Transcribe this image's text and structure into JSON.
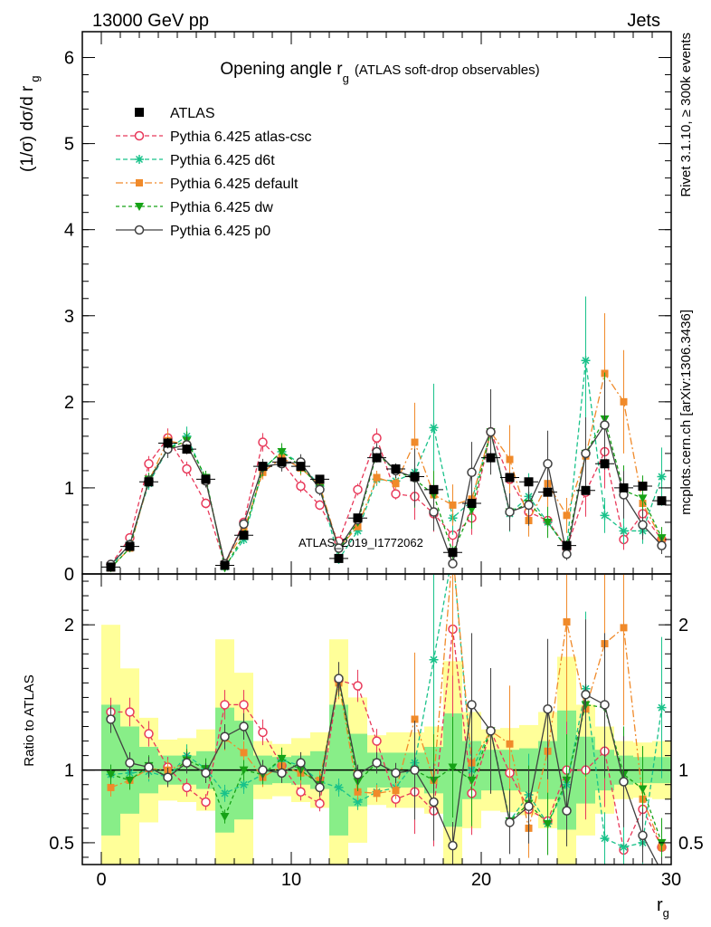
{
  "header": {
    "left": "13000 GeV pp",
    "right": "Jets",
    "side_top": "Rivet 3.1.10, ≥ 300k events",
    "side_bottom": "mcplots.cern.ch [arXiv:1306.3436]",
    "watermark": "ATLAS_2019_I1772062"
  },
  "chart_data": [
    {
      "type": "line",
      "title_main": "Opening angle r",
      "title_sub": "g",
      "title_paren": "(ATLAS soft-drop observables)",
      "ylabel_main": "(1/σ) dσ/d r",
      "ylabel_sub": "g",
      "xlim": [
        -1,
        30
      ],
      "ylim": [
        0,
        6.3
      ],
      "yticks": [
        0,
        1,
        2,
        3,
        4,
        5,
        6
      ],
      "x": [
        0.5,
        1.5,
        2.5,
        3.5,
        4.5,
        5.5,
        6.5,
        7.5,
        8.5,
        9.5,
        10.5,
        11.5,
        12.5,
        13.5,
        14.5,
        15.5,
        16.5,
        17.5,
        18.5,
        19.5,
        20.5,
        21.5,
        22.5,
        23.5,
        24.5,
        25.5,
        26.5,
        27.5,
        28.5,
        29.5
      ],
      "series": [
        {
          "name": "ATLAS",
          "color": "#000000",
          "style": "data",
          "values": [
            0.08,
            0.32,
            1.07,
            1.52,
            1.45,
            1.1,
            0.1,
            0.45,
            1.25,
            1.3,
            1.25,
            1.1,
            0.18,
            0.65,
            1.35,
            1.22,
            1.13,
            0.98,
            0.25,
            0.82,
            1.35,
            1.12,
            1.07,
            0.95,
            0.33,
            0.97,
            1.28,
            1.0,
            1.02,
            0.85
          ]
        },
        {
          "name": "Pythia 6.425 atlas-csc",
          "color": "#e8395a",
          "style": "dashed-circle",
          "values": [
            0.11,
            0.42,
            1.28,
            1.58,
            1.22,
            0.82,
            0.12,
            0.6,
            1.53,
            1.3,
            1.02,
            0.8,
            0.38,
            0.98,
            1.58,
            0.93,
            0.9,
            0.7,
            0.45,
            0.65,
            1.65,
            1.1,
            0.72,
            0.62,
            0.3,
            0.95,
            1.42,
            0.4,
            0.7,
            0.4
          ]
        },
        {
          "name": "Pythia 6.425 d6t",
          "color": "#19c28a",
          "style": "dashed-star",
          "values": [
            0.08,
            0.35,
            1.05,
            1.45,
            1.6,
            1.1,
            0.08,
            0.4,
            1.22,
            1.42,
            1.28,
            1.02,
            0.17,
            0.5,
            1.1,
            1.08,
            1.18,
            1.7,
            0.65,
            0.85,
            1.65,
            0.7,
            0.9,
            0.6,
            0.3,
            2.48,
            0.68,
            0.5,
            0.5,
            1.13
          ]
        },
        {
          "name": "Pythia 6.425 default",
          "color": "#f08a2a",
          "style": "dashdot-square",
          "values": [
            0.07,
            0.3,
            1.08,
            1.55,
            1.5,
            1.08,
            0.12,
            0.5,
            1.18,
            1.35,
            1.23,
            1.03,
            0.3,
            0.55,
            1.12,
            1.05,
            1.53,
            0.92,
            0.8,
            0.87,
            1.65,
            1.33,
            0.62,
            1.05,
            0.68,
            1.37,
            2.33,
            2.0,
            0.82,
            0.4
          ]
        },
        {
          "name": "Pythia 6.425 dw",
          "color": "#16a216",
          "style": "dashed-triangle",
          "values": [
            0.07,
            0.3,
            1.1,
            1.45,
            1.55,
            1.12,
            0.07,
            0.45,
            1.22,
            1.42,
            1.25,
            1.0,
            0.28,
            0.6,
            1.4,
            1.2,
            1.1,
            0.92,
            0.25,
            0.75,
            1.65,
            0.72,
            0.82,
            0.6,
            0.3,
            1.4,
            1.8,
            0.97,
            0.88,
            0.42
          ]
        },
        {
          "name": "Pythia 6.425 p0",
          "color": "#404040",
          "style": "solid-circle",
          "values": [
            0.11,
            0.34,
            1.08,
            1.45,
            1.5,
            1.08,
            0.12,
            0.58,
            1.25,
            1.28,
            1.3,
            0.98,
            0.3,
            0.63,
            1.42,
            1.2,
            1.12,
            0.72,
            0.12,
            1.18,
            1.65,
            0.72,
            0.8,
            1.28,
            0.23,
            1.4,
            1.73,
            0.92,
            0.57,
            0.33
          ]
        }
      ]
    },
    {
      "type": "line",
      "ylabel": "Ratio to ATLAS",
      "xlabel_main": "r",
      "xlabel_sub": "g",
      "xlim": [
        -1,
        30
      ],
      "ylim": [
        0.35,
        2.35
      ],
      "yticks": [
        0.5,
        1,
        2
      ],
      "xticks": [
        0,
        10,
        20,
        30
      ],
      "band_inner_halfwidth": [
        0.45,
        0.3,
        0.16,
        0.1,
        0.1,
        0.13,
        0.43,
        0.34,
        0.1,
        0.09,
        0.1,
        0.13,
        0.45,
        0.25,
        0.12,
        0.12,
        0.12,
        0.16,
        0.39,
        0.2,
        0.14,
        0.14,
        0.15,
        0.2,
        0.41,
        0.23,
        0.14,
        0.1,
        0.09,
        0.09
      ],
      "band_outer_halfwidth": [
        1.0,
        0.7,
        0.36,
        0.21,
        0.22,
        0.28,
        0.9,
        0.67,
        0.2,
        0.18,
        0.22,
        0.26,
        0.9,
        0.5,
        0.24,
        0.26,
        0.26,
        0.3,
        0.75,
        0.4,
        0.28,
        0.29,
        0.31,
        0.4,
        0.78,
        0.45,
        0.3,
        0.2,
        0.19,
        0.2
      ],
      "series": [
        {
          "name": "Pythia 6.425 atlas-csc",
          "color": "#e8395a",
          "style": "dashed-circle",
          "values": [
            1.4,
            1.4,
            1.25,
            1.02,
            0.88,
            0.78,
            1.45,
            1.45,
            1.26,
            1.03,
            0.85,
            0.77,
            1.62,
            1.58,
            1.2,
            0.8,
            0.85,
            0.72,
            1.97,
            0.84,
            1.27,
            0.98,
            0.73,
            0.65,
            1.0,
            1.0,
            1.13,
            0.45,
            0.73,
            0.47
          ]
        },
        {
          "name": "Pythia 6.425 d6t",
          "color": "#19c28a",
          "style": "dashed-star",
          "values": [
            0.97,
            0.98,
            0.99,
            0.95,
            1.1,
            1.01,
            0.84,
            0.9,
            0.97,
            1.07,
            1.03,
            0.92,
            0.88,
            0.78,
            0.85,
            0.88,
            1.05,
            1.76,
            2.5,
            1.0,
            1.27,
            0.65,
            0.83,
            0.63,
            0.9,
            1.56,
            0.53,
            0.47,
            0.5,
            1.43
          ]
        },
        {
          "name": "Pythia 6.425 default",
          "color": "#f08a2a",
          "style": "dashdot-square",
          "values": [
            0.88,
            0.93,
            1.01,
            1.0,
            1.05,
            0.98,
            1.22,
            1.12,
            0.95,
            1.03,
            0.98,
            0.93,
            1.6,
            0.85,
            0.84,
            0.86,
            1.35,
            0.93,
            2.5,
            1.05,
            1.27,
            1.18,
            0.6,
            1.13,
            2.02,
            1.42,
            1.87,
            1.98,
            0.8,
            0.47
          ]
        },
        {
          "name": "Pythia 6.425 dw",
          "color": "#16a216",
          "style": "dashed-triangle",
          "values": [
            0.97,
            0.93,
            1.03,
            0.95,
            1.07,
            1.01,
            0.68,
            1.0,
            0.97,
            1.08,
            1.0,
            0.9,
            1.62,
            0.92,
            1.05,
            0.98,
            1.0,
            0.93,
            1.02,
            0.93,
            1.27,
            0.65,
            0.77,
            0.63,
            0.93,
            1.45,
            1.43,
            0.97,
            0.87,
            0.5
          ]
        },
        {
          "name": "Pythia 6.425 p0",
          "color": "#404040",
          "style": "solid-circle",
          "values": [
            1.35,
            1.05,
            1.02,
            0.95,
            1.05,
            0.98,
            1.23,
            1.3,
            1.0,
            0.98,
            1.05,
            0.88,
            1.63,
            0.97,
            1.05,
            0.98,
            1.0,
            0.78,
            0.48,
            1.45,
            1.27,
            0.64,
            0.75,
            1.42,
            0.72,
            1.52,
            1.45,
            0.92,
            0.55,
            0.3
          ]
        }
      ]
    }
  ]
}
